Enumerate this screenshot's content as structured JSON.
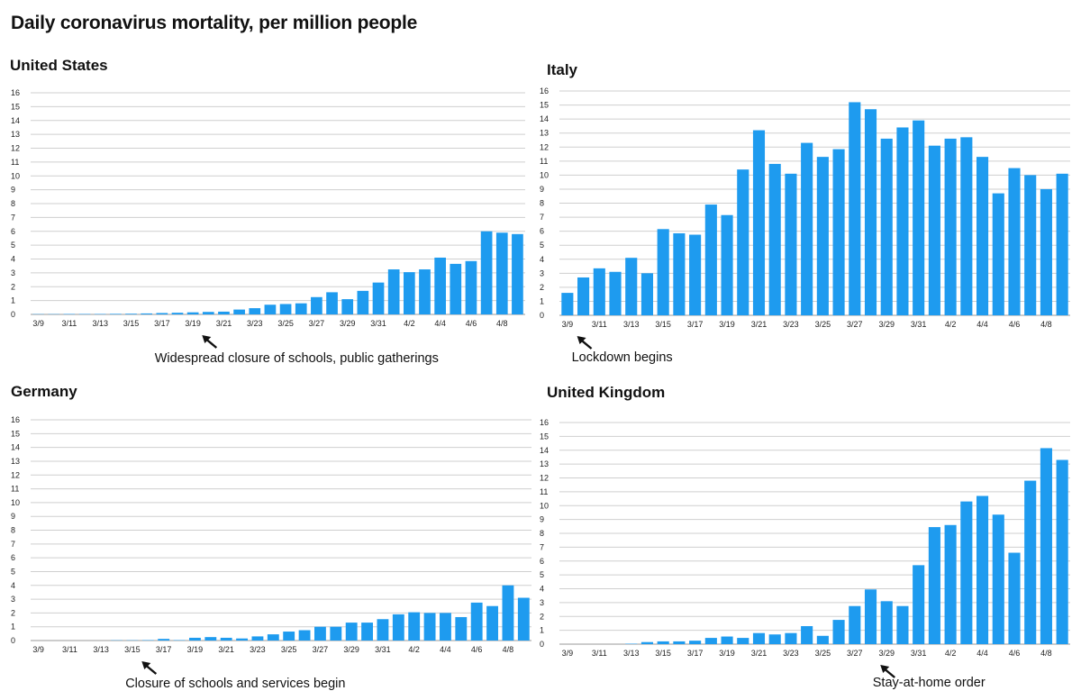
{
  "title": "Daily coronavirus mortality, per million people",
  "chart_data": [
    {
      "type": "bar",
      "title": "United States",
      "categories": [
        "3/9",
        "3/10",
        "3/11",
        "3/12",
        "3/13",
        "3/14",
        "3/15",
        "3/16",
        "3/17",
        "3/18",
        "3/19",
        "3/20",
        "3/21",
        "3/22",
        "3/23",
        "3/24",
        "3/25",
        "3/26",
        "3/27",
        "3/28",
        "3/29",
        "3/30",
        "3/31",
        "4/1",
        "4/2",
        "4/3",
        "4/4",
        "4/5",
        "4/6",
        "4/7",
        "4/8",
        "4/9"
      ],
      "x_tick_labels": [
        "3/9",
        "3/11",
        "3/13",
        "3/15",
        "3/17",
        "3/19",
        "3/21",
        "3/23",
        "3/25",
        "3/27",
        "3/29",
        "3/31",
        "4/2",
        "4/4",
        "4/6",
        "4/8"
      ],
      "values": [
        0.02,
        0.02,
        0.03,
        0.03,
        0.03,
        0.04,
        0.05,
        0.07,
        0.1,
        0.12,
        0.15,
        0.18,
        0.2,
        0.35,
        0.45,
        0.7,
        0.75,
        0.8,
        1.25,
        1.6,
        1.1,
        1.7,
        2.3,
        3.25,
        3.05,
        3.25,
        4.1,
        3.65,
        3.85,
        6.0,
        5.9,
        5.8
      ],
      "ylim": [
        0,
        16
      ],
      "y_ticks": [
        0,
        1,
        2,
        3,
        4,
        5,
        6,
        7,
        8,
        9,
        10,
        11,
        12,
        13,
        14,
        15,
        16
      ],
      "grid": true,
      "bar_color": "#1e9bef",
      "annotation": {
        "text": "Widespread closure of schools, public gatherings",
        "category": "3/20"
      }
    },
    {
      "type": "bar",
      "title": "Italy",
      "categories": [
        "3/9",
        "3/10",
        "3/11",
        "3/12",
        "3/13",
        "3/14",
        "3/15",
        "3/16",
        "3/17",
        "3/18",
        "3/19",
        "3/20",
        "3/21",
        "3/22",
        "3/23",
        "3/24",
        "3/25",
        "3/26",
        "3/27",
        "3/28",
        "3/29",
        "3/30",
        "3/31",
        "4/1",
        "4/2",
        "4/3",
        "4/4",
        "4/5",
        "4/6",
        "4/7",
        "4/8",
        "4/9"
      ],
      "x_tick_labels": [
        "3/9",
        "3/11",
        "3/13",
        "3/15",
        "3/17",
        "3/19",
        "3/21",
        "3/23",
        "3/25",
        "3/27",
        "3/29",
        "3/31",
        "4/2",
        "4/4",
        "4/6",
        "4/8"
      ],
      "values": [
        1.6,
        2.7,
        3.35,
        3.1,
        4.1,
        3.0,
        6.15,
        5.85,
        5.75,
        7.9,
        7.15,
        10.4,
        13.2,
        10.8,
        10.1,
        12.3,
        11.3,
        11.85,
        15.2,
        14.7,
        12.6,
        13.4,
        13.9,
        12.1,
        12.6,
        12.7,
        11.3,
        8.7,
        10.5,
        10.0,
        9.0,
        10.1
      ],
      "ylim": [
        0,
        16
      ],
      "y_ticks": [
        0,
        1,
        2,
        3,
        4,
        5,
        6,
        7,
        8,
        9,
        10,
        11,
        12,
        13,
        14,
        15,
        16
      ],
      "grid": true,
      "bar_color": "#1e9bef",
      "annotation": {
        "text": "Lockdown begins",
        "category": "3/10"
      }
    },
    {
      "type": "bar",
      "title": "Germany",
      "categories": [
        "3/9",
        "3/10",
        "3/11",
        "3/12",
        "3/13",
        "3/14",
        "3/15",
        "3/16",
        "3/17",
        "3/18",
        "3/19",
        "3/20",
        "3/21",
        "3/22",
        "3/23",
        "3/24",
        "3/25",
        "3/26",
        "3/27",
        "3/28",
        "3/29",
        "3/30",
        "3/31",
        "4/1",
        "4/2",
        "4/3",
        "4/4",
        "4/5",
        "4/6",
        "4/7",
        "4/8",
        "4/9"
      ],
      "x_tick_labels": [
        "3/9",
        "3/11",
        "3/13",
        "3/15",
        "3/17",
        "3/19",
        "3/21",
        "3/23",
        "3/25",
        "3/27",
        "3/29",
        "3/31",
        "4/2",
        "4/4",
        "4/6",
        "4/8"
      ],
      "values": [
        0.0,
        0.0,
        0.0,
        0.0,
        0.0,
        0.02,
        0.02,
        0.03,
        0.12,
        0.03,
        0.2,
        0.25,
        0.2,
        0.15,
        0.3,
        0.45,
        0.65,
        0.75,
        1.0,
        1.0,
        1.3,
        1.3,
        1.55,
        1.9,
        2.05,
        2.0,
        2.0,
        1.7,
        2.75,
        2.5,
        4.0,
        3.1
      ],
      "ylim": [
        0,
        16
      ],
      "y_ticks": [
        0,
        1,
        2,
        3,
        4,
        5,
        6,
        7,
        8,
        9,
        10,
        11,
        12,
        13,
        14,
        15,
        16
      ],
      "grid": true,
      "bar_color": "#1e9bef",
      "annotation": {
        "text": "Closure of schools and services begin",
        "category": "3/16"
      }
    },
    {
      "type": "bar",
      "title": "United Kingdom",
      "categories": [
        "3/9",
        "3/10",
        "3/11",
        "3/12",
        "3/13",
        "3/14",
        "3/15",
        "3/16",
        "3/17",
        "3/18",
        "3/19",
        "3/20",
        "3/21",
        "3/22",
        "3/23",
        "3/24",
        "3/25",
        "3/26",
        "3/27",
        "3/28",
        "3/29",
        "3/30",
        "3/31",
        "4/1",
        "4/2",
        "4/3",
        "4/4",
        "4/5",
        "4/6",
        "4/7",
        "4/8",
        "4/9"
      ],
      "x_tick_labels": [
        "3/9",
        "3/11",
        "3/13",
        "3/15",
        "3/17",
        "3/19",
        "3/21",
        "3/23",
        "3/25",
        "3/27",
        "3/29",
        "3/31",
        "4/2",
        "4/4",
        "4/6",
        "4/8"
      ],
      "values": [
        0.0,
        0.0,
        0.0,
        0.0,
        0.03,
        0.15,
        0.2,
        0.2,
        0.25,
        0.45,
        0.55,
        0.45,
        0.8,
        0.7,
        0.8,
        1.3,
        0.6,
        1.75,
        2.75,
        3.95,
        3.1,
        2.75,
        5.7,
        8.45,
        8.6,
        10.3,
        10.7,
        9.35,
        6.6,
        11.8,
        14.15,
        13.3
      ],
      "ylim": [
        0,
        16
      ],
      "y_ticks": [
        0,
        1,
        2,
        3,
        4,
        5,
        6,
        7,
        8,
        9,
        10,
        11,
        12,
        13,
        14,
        15,
        16
      ],
      "grid": true,
      "bar_color": "#1e9bef",
      "annotation": {
        "text": "Stay-at-home order",
        "category": "3/29"
      }
    }
  ]
}
